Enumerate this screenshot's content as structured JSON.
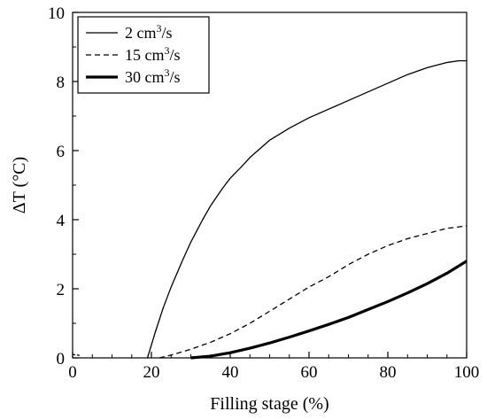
{
  "chart_data": {
    "type": "line",
    "title": "",
    "xlabel": "Filling stage (%)",
    "ylabel": "ΔT (°C)",
    "xlim": [
      0,
      100
    ],
    "ylim": [
      0,
      10
    ],
    "x_ticks": [
      "0",
      "20",
      "40",
      "60",
      "80",
      "100"
    ],
    "y_ticks": [
      "0",
      "2",
      "4",
      "6",
      "8",
      "10"
    ],
    "grid": false,
    "legend_position": "top-left",
    "series": [
      {
        "name": "2 cm3/s",
        "label_base": "2 cm",
        "label_sup": "3",
        "label_tail": "/s",
        "style": "solid-thin",
        "x": [
          19,
          21,
          23,
          25,
          28,
          30,
          33,
          35,
          38,
          40,
          43,
          45,
          48,
          50,
          55,
          60,
          65,
          70,
          75,
          80,
          85,
          90,
          95,
          98,
          100
        ],
        "y": [
          0,
          0.75,
          1.45,
          2.05,
          2.85,
          3.35,
          4.0,
          4.4,
          4.9,
          5.2,
          5.55,
          5.8,
          6.1,
          6.3,
          6.65,
          6.95,
          7.2,
          7.45,
          7.7,
          7.95,
          8.2,
          8.4,
          8.55,
          8.6,
          8.6
        ]
      },
      {
        "name": "15 cm3/s",
        "label_base": "15 cm",
        "label_sup": "3",
        "label_tail": "/s",
        "style": "dashed",
        "x": [
          22,
          25,
          30,
          35,
          40,
          45,
          50,
          55,
          60,
          65,
          70,
          75,
          80,
          85,
          90,
          95,
          100
        ],
        "y": [
          0,
          0.08,
          0.25,
          0.45,
          0.7,
          1.0,
          1.35,
          1.7,
          2.05,
          2.35,
          2.7,
          3.0,
          3.25,
          3.45,
          3.6,
          3.75,
          3.82
        ]
      },
      {
        "name": "30 cm3/s",
        "label_base": "30 cm",
        "label_sup": "3",
        "label_tail": "/s",
        "style": "solid-thick",
        "x": [
          30,
          35,
          40,
          45,
          50,
          55,
          60,
          65,
          70,
          75,
          80,
          85,
          90,
          95,
          100
        ],
        "y": [
          0,
          0.05,
          0.15,
          0.28,
          0.43,
          0.6,
          0.78,
          0.97,
          1.17,
          1.4,
          1.63,
          1.88,
          2.15,
          2.45,
          2.8
        ]
      }
    ],
    "stray_segment": {
      "x": [
        0,
        2
      ],
      "y": [
        0.1,
        0.07
      ]
    }
  }
}
